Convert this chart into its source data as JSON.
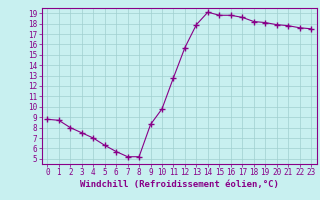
{
  "x": [
    0,
    1,
    2,
    3,
    4,
    5,
    6,
    7,
    8,
    9,
    10,
    11,
    12,
    13,
    14,
    15,
    16,
    17,
    18,
    19,
    20,
    21,
    22,
    23
  ],
  "y": [
    8.8,
    8.7,
    8.0,
    7.5,
    7.0,
    6.3,
    5.7,
    5.2,
    5.2,
    8.3,
    9.8,
    12.8,
    15.7,
    17.9,
    19.1,
    18.8,
    18.8,
    18.6,
    18.2,
    18.1,
    17.9,
    17.8,
    17.6,
    17.5
  ],
  "line_color": "#880088",
  "marker": "+",
  "marker_size": 4,
  "bg_color": "#c8f0f0",
  "grid_color": "#a0d0d0",
  "axis_color": "#880088",
  "xlabel": "Windchill (Refroidissement éolien,°C)",
  "ylim": [
    4.5,
    19.5
  ],
  "xlim": [
    -0.5,
    23.5
  ],
  "yticks": [
    5,
    6,
    7,
    8,
    9,
    10,
    11,
    12,
    13,
    14,
    15,
    16,
    17,
    18,
    19
  ],
  "xticks": [
    0,
    1,
    2,
    3,
    4,
    5,
    6,
    7,
    8,
    9,
    10,
    11,
    12,
    13,
    14,
    15,
    16,
    17,
    18,
    19,
    20,
    21,
    22,
    23
  ],
  "tick_fontsize": 5.5,
  "xlabel_fontsize": 6.5
}
